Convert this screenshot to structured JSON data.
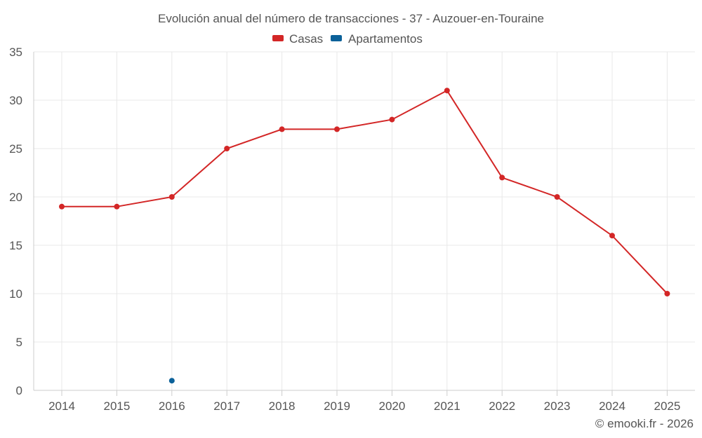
{
  "chart_data": {
    "type": "line",
    "title": "Evolución anual del número de transacciones - 37 - Auzouer-en-Touraine",
    "categories": [
      "2014",
      "2015",
      "2016",
      "2017",
      "2018",
      "2019",
      "2020",
      "2021",
      "2022",
      "2023",
      "2024",
      "2025"
    ],
    "series": [
      {
        "name": "Casas",
        "color": "#d32626",
        "values": [
          19,
          19,
          20,
          25,
          27,
          27,
          28,
          31,
          22,
          20,
          16,
          10
        ]
      },
      {
        "name": "Apartamentos",
        "color": "#0b6199",
        "values": [
          null,
          null,
          1,
          null,
          null,
          null,
          null,
          null,
          null,
          null,
          null,
          null
        ]
      }
    ],
    "y_ticks": [
      "0",
      "5",
      "10",
      "15",
      "20",
      "25",
      "30",
      "35"
    ],
    "ylim": [
      0,
      35
    ],
    "xlabel": "",
    "ylabel": "",
    "grid": true,
    "legend_position": "top-center"
  },
  "credit": "© emooki.fr - 2026"
}
